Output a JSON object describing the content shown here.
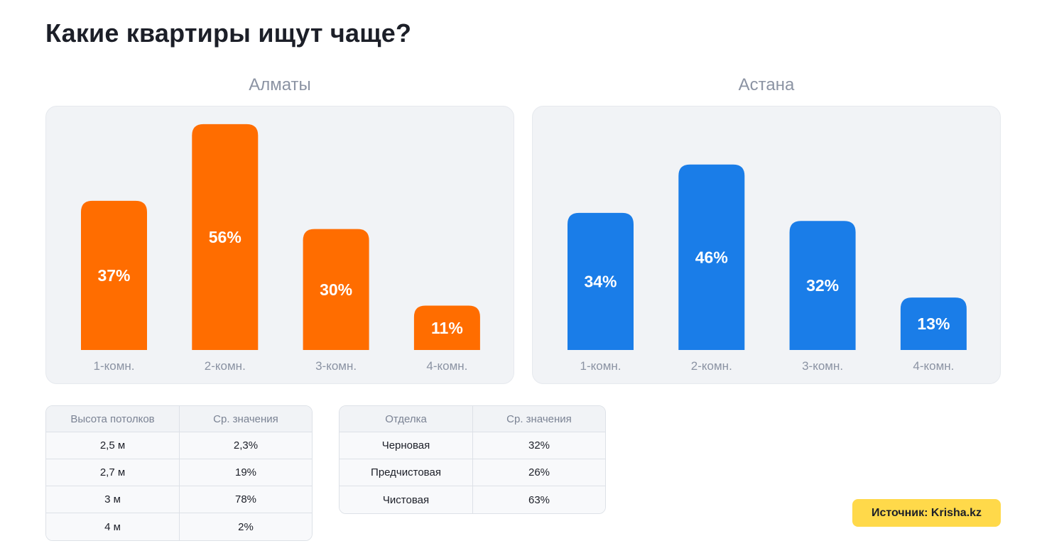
{
  "page": {
    "title": "Какие квартиры ищут чаще?"
  },
  "chart_data": [
    {
      "type": "bar",
      "title": "Алматы",
      "categories": [
        "1-комн.",
        "2-комн.",
        "3-комн.",
        "4-комн."
      ],
      "values": [
        37,
        56,
        30,
        11
      ],
      "value_labels": [
        "37%",
        "56%",
        "30%",
        "11%"
      ],
      "unit": "%",
      "ylim": [
        0,
        60
      ],
      "grid": false,
      "color": "#ff6d00"
    },
    {
      "type": "bar",
      "title": "Астана",
      "categories": [
        "1-комн.",
        "2-комн.",
        "3-комн.",
        "4-комн."
      ],
      "values": [
        34,
        46,
        32,
        13
      ],
      "value_labels": [
        "34%",
        "46%",
        "32%",
        "13%"
      ],
      "unit": "%",
      "ylim": [
        0,
        60
      ],
      "grid": false,
      "color": "#1a7de8"
    }
  ],
  "ceiling_table": {
    "headers": [
      "Высота потолков",
      "Ср. значения"
    ],
    "rows": [
      [
        "2,5 м",
        "2,3%"
      ],
      [
        "2,7 м",
        "19%"
      ],
      [
        "3 м",
        "78%"
      ],
      [
        "4 м",
        "2%"
      ]
    ]
  },
  "finish_table": {
    "headers": [
      "Отделка",
      "Ср. значения"
    ],
    "rows": [
      [
        "Черновая",
        "32%"
      ],
      [
        "Предчистовая",
        "26%"
      ],
      [
        "Чистовая",
        "63%"
      ]
    ]
  },
  "source": {
    "label": "Источник: Krisha.kz",
    "color": "#ffd94a"
  }
}
